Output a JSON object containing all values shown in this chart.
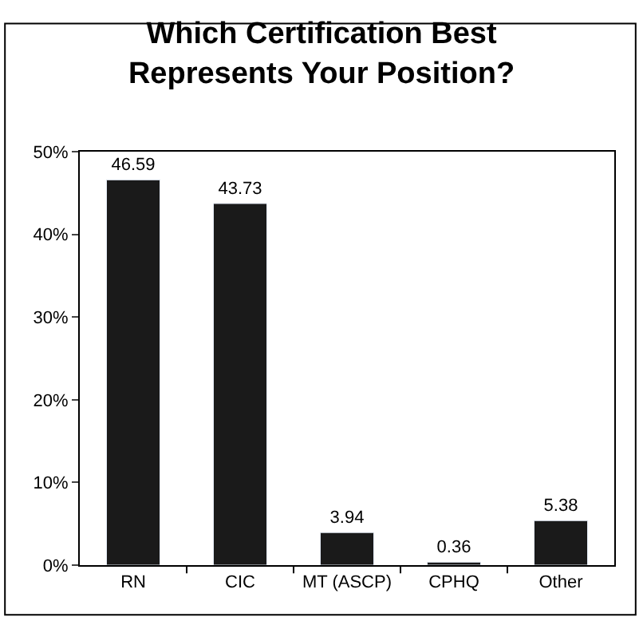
{
  "chart_data": {
    "type": "bar",
    "title": "Which Certification Best\nRepresents Your Position?",
    "categories": [
      "RN",
      "CIC",
      "MT (ASCP)",
      "CPHQ",
      "Other"
    ],
    "values": [
      46.59,
      43.73,
      3.94,
      0.36,
      5.38
    ],
    "color": "#1a1a1a",
    "ylim": [
      0,
      50
    ],
    "yticks": [
      {
        "value": 0,
        "label": "0%"
      },
      {
        "value": 10,
        "label": "10%"
      },
      {
        "value": 20,
        "label": "20%"
      },
      {
        "value": 30,
        "label": "30%"
      },
      {
        "value": 40,
        "label": "40%"
      },
      {
        "value": 50,
        "label": "50%"
      }
    ],
    "data_labels": true,
    "grid": false
  }
}
